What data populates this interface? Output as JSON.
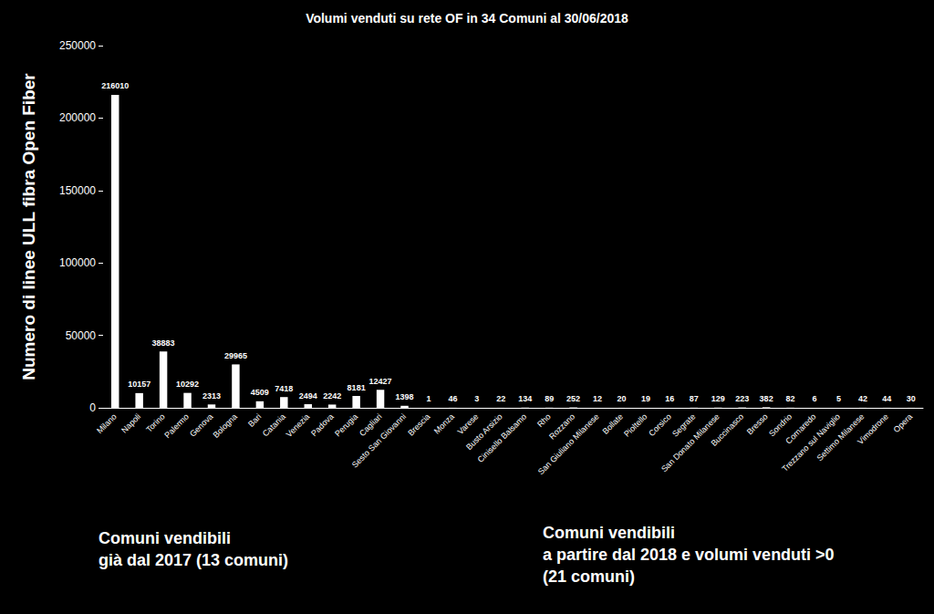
{
  "chart_data": {
    "type": "bar",
    "title": "Volumi venduti su rete OF in 34 Comuni al 30/06/2018",
    "y_label": "Numero di linee ULL fibra Open Fiber",
    "categories": [
      "Milano",
      "Napoli",
      "Torino",
      "Palermo",
      "Genova",
      "Bologna",
      "Bari",
      "Catania",
      "Venezia",
      "Padova",
      "Perugia",
      "Cagliari",
      "Sesto San Giovanni",
      "Brescia",
      "Monza",
      "Varese",
      "Busto Arsizio",
      "Cinisello Balsamo",
      "Rho",
      "Rozzano",
      "San Giuliano Milanese",
      "Bollate",
      "Pioltello",
      "Corsico",
      "Segrate",
      "San Donato Milanese",
      "Buccinasco",
      "Bresso",
      "Sondrio",
      "Cornaredo",
      "Trezzano sul Naviglio",
      "Settimo Milanese",
      "Vimodrone",
      "Opera"
    ],
    "values": [
      216010,
      10157,
      38883,
      10292,
      2313,
      29965,
      4509,
      7418,
      2494,
      2242,
      8181,
      12427,
      1398,
      1,
      46,
      3,
      22,
      134,
      89,
      252,
      12,
      20,
      19,
      16,
      87,
      129,
      223,
      382,
      82,
      6,
      5,
      42,
      44,
      30
    ],
    "color": "#ffffff",
    "ylim": [
      0,
      250000
    ],
    "yticks": [
      0,
      50000,
      100000,
      150000,
      200000,
      250000
    ],
    "grid": false,
    "data_labels": true,
    "annotations": [
      "Comuni vendibili\ngià dal 2017 (13 comuni)",
      "Comuni vendibili\na partire dal 2018 e volumi venduti >0\n(21 comuni)"
    ]
  }
}
